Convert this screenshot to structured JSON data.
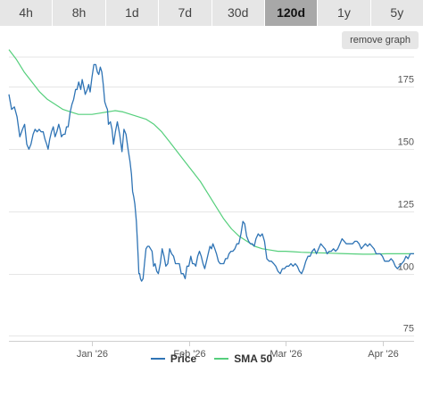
{
  "ranges": [
    "4h",
    "8h",
    "1d",
    "7d",
    "30d",
    "120d",
    "1y",
    "5y"
  ],
  "active_range": "120d",
  "remove_graph_label": "remove graph",
  "colors": {
    "price": "#2f74b5",
    "sma": "#55cf7c",
    "grid": "#e6e6e6",
    "tabs": "#e6e6e6",
    "active_tab": "#a8a8a8"
  },
  "chart_data": {
    "type": "line",
    "title": "",
    "xlabel": "",
    "ylabel": "",
    "x_ticks": [
      "Jan '26",
      "Feb '26",
      "Mar '26",
      "Apr '26"
    ],
    "x_tick_positions": [
      0,
      1,
      2,
      3
    ],
    "xlim": [
      -0.858,
      3.326
    ],
    "y_ticks": [
      75,
      100,
      125,
      150,
      175
    ],
    "ylim": [
      73,
      187
    ],
    "grid": true,
    "legend": "bottom-center",
    "series": [
      {
        "name": "Price",
        "color": "#2f74b5",
        "points": [
          [
            -0.858,
            172
          ],
          [
            -0.83,
            166
          ],
          [
            -0.802,
            167
          ],
          [
            -0.774,
            163
          ],
          [
            -0.746,
            155
          ],
          [
            -0.718,
            158
          ],
          [
            -0.696,
            160
          ],
          [
            -0.674,
            152
          ],
          [
            -0.652,
            150
          ],
          [
            -0.63,
            152
          ],
          [
            -0.608,
            156
          ],
          [
            -0.588,
            158
          ],
          [
            -0.567,
            157
          ],
          [
            -0.546,
            158
          ],
          [
            -0.525,
            157
          ],
          [
            -0.504,
            157
          ],
          [
            -0.486,
            154
          ],
          [
            -0.468,
            152
          ],
          [
            -0.453,
            150
          ],
          [
            -0.437,
            154
          ],
          [
            -0.418,
            157
          ],
          [
            -0.4,
            159
          ],
          [
            -0.382,
            155
          ],
          [
            -0.363,
            157
          ],
          [
            -0.344,
            160
          ],
          [
            -0.33,
            158
          ],
          [
            -0.316,
            155
          ],
          [
            -0.297,
            156
          ],
          [
            -0.278,
            156
          ],
          [
            -0.264,
            159
          ],
          [
            -0.246,
            159
          ],
          [
            -0.225,
            165
          ],
          [
            -0.207,
            168
          ],
          [
            -0.19,
            170
          ],
          [
            -0.17,
            174
          ],
          [
            -0.155,
            174
          ],
          [
            -0.137,
            177
          ],
          [
            -0.116,
            174
          ],
          [
            -0.101,
            178
          ],
          [
            -0.085,
            175
          ],
          [
            -0.07,
            172
          ],
          [
            -0.049,
            174
          ],
          [
            -0.034,
            176
          ],
          [
            -0.019,
            173
          ],
          [
            0.0,
            179
          ],
          [
            0.019,
            184
          ],
          [
            0.039,
            184
          ],
          [
            0.055,
            181
          ],
          [
            0.07,
            180
          ],
          [
            0.086,
            183
          ],
          [
            0.101,
            181
          ],
          [
            0.116,
            176
          ],
          [
            0.132,
            169
          ],
          [
            0.148,
            167
          ],
          [
            0.159,
            166
          ],
          [
            0.17,
            160
          ],
          [
            0.19,
            161
          ],
          [
            0.206,
            158
          ],
          [
            0.222,
            152
          ],
          [
            0.241,
            157
          ],
          [
            0.262,
            161
          ],
          [
            0.286,
            156
          ],
          [
            0.31,
            149
          ],
          [
            0.33,
            158
          ],
          [
            0.351,
            156
          ],
          [
            0.372,
            150
          ],
          [
            0.393,
            145
          ],
          [
            0.407,
            140
          ],
          [
            0.419,
            133
          ],
          [
            0.43,
            131
          ],
          [
            0.442,
            128
          ],
          [
            0.458,
            121
          ],
          [
            0.47,
            112
          ],
          [
            0.477,
            106
          ],
          [
            0.484,
            100
          ],
          [
            0.492,
            100
          ],
          [
            0.5,
            98
          ],
          [
            0.512,
            97
          ],
          [
            0.527,
            98
          ],
          [
            0.542,
            104
          ],
          [
            0.558,
            110
          ],
          [
            0.574,
            111
          ],
          [
            0.589,
            111
          ],
          [
            0.605,
            110
          ],
          [
            0.62,
            109
          ],
          [
            0.636,
            103
          ],
          [
            0.652,
            104
          ],
          [
            0.668,
            101
          ],
          [
            0.685,
            100
          ],
          [
            0.705,
            104
          ],
          [
            0.724,
            110
          ],
          [
            0.744,
            107
          ],
          [
            0.762,
            103
          ],
          [
            0.782,
            104
          ],
          [
            0.802,
            110
          ],
          [
            0.822,
            108
          ],
          [
            0.842,
            107
          ],
          [
            0.862,
            104
          ],
          [
            0.882,
            104
          ],
          [
            0.902,
            104
          ],
          [
            0.922,
            100
          ],
          [
            0.942,
            100
          ],
          [
            0.962,
            98
          ],
          [
            0.981,
            103
          ],
          [
            1.0,
            103
          ],
          [
            1.02,
            107
          ],
          [
            1.038,
            104
          ],
          [
            1.055,
            104
          ],
          [
            1.072,
            103
          ],
          [
            1.091,
            107
          ],
          [
            1.11,
            109
          ],
          [
            1.128,
            107
          ],
          [
            1.146,
            104
          ],
          [
            1.164,
            102
          ],
          [
            1.182,
            105
          ],
          [
            1.2,
            108
          ],
          [
            1.218,
            111
          ],
          [
            1.234,
            110
          ],
          [
            1.249,
            112
          ],
          [
            1.268,
            110
          ],
          [
            1.286,
            108
          ],
          [
            1.305,
            105
          ],
          [
            1.323,
            104
          ],
          [
            1.342,
            104
          ],
          [
            1.36,
            104
          ],
          [
            1.379,
            106
          ],
          [
            1.398,
            106
          ],
          [
            1.415,
            108
          ],
          [
            1.436,
            109
          ],
          [
            1.454,
            109
          ],
          [
            1.475,
            110
          ],
          [
            1.496,
            112
          ],
          [
            1.516,
            112
          ],
          [
            1.538,
            116
          ],
          [
            1.558,
            121
          ],
          [
            1.577,
            120
          ],
          [
            1.597,
            115
          ],
          [
            1.617,
            113
          ],
          [
            1.636,
            112
          ],
          [
            1.655,
            112
          ],
          [
            1.675,
            111
          ],
          [
            1.693,
            114
          ],
          [
            1.716,
            116
          ],
          [
            1.737,
            115
          ],
          [
            1.758,
            116
          ],
          [
            1.781,
            113
          ],
          [
            1.805,
            106
          ],
          [
            1.829,
            105
          ],
          [
            1.852,
            105
          ],
          [
            1.876,
            104
          ],
          [
            1.898,
            103
          ],
          [
            1.92,
            101
          ],
          [
            1.944,
            100
          ],
          [
            1.966,
            102
          ],
          [
            1.988,
            102
          ],
          [
            2.01,
            103
          ],
          [
            2.032,
            103
          ],
          [
            2.054,
            104
          ],
          [
            2.076,
            103
          ],
          [
            2.098,
            104
          ],
          [
            2.12,
            103
          ],
          [
            2.142,
            101
          ],
          [
            2.164,
            100
          ],
          [
            2.186,
            102
          ],
          [
            2.208,
            105
          ],
          [
            2.23,
            107
          ],
          [
            2.252,
            107
          ],
          [
            2.274,
            109
          ],
          [
            2.296,
            110
          ],
          [
            2.318,
            108
          ],
          [
            2.34,
            110
          ],
          [
            2.362,
            112
          ],
          [
            2.384,
            111
          ],
          [
            2.406,
            110
          ],
          [
            2.428,
            108
          ],
          [
            2.45,
            109
          ],
          [
            2.472,
            109
          ],
          [
            2.494,
            110
          ],
          [
            2.516,
            109
          ],
          [
            2.538,
            110
          ],
          [
            2.56,
            112
          ],
          [
            2.582,
            114
          ],
          [
            2.604,
            113
          ],
          [
            2.626,
            112
          ],
          [
            2.648,
            112
          ],
          [
            2.67,
            112
          ],
          [
            2.692,
            112
          ],
          [
            2.714,
            113
          ],
          [
            2.736,
            113
          ],
          [
            2.758,
            112
          ],
          [
            2.78,
            110
          ],
          [
            2.802,
            111
          ],
          [
            2.824,
            112
          ],
          [
            2.846,
            111
          ],
          [
            2.868,
            112
          ],
          [
            2.89,
            111
          ],
          [
            2.912,
            110
          ],
          [
            2.934,
            108
          ],
          [
            2.956,
            108
          ],
          [
            2.978,
            108
          ],
          [
            3.0,
            107
          ],
          [
            3.022,
            105
          ],
          [
            3.044,
            105
          ],
          [
            3.066,
            105
          ],
          [
            3.088,
            106
          ],
          [
            3.11,
            105
          ],
          [
            3.132,
            103
          ],
          [
            3.154,
            102
          ],
          [
            3.176,
            103
          ],
          [
            3.198,
            104
          ],
          [
            3.22,
            105
          ],
          [
            3.242,
            107
          ],
          [
            3.264,
            106
          ],
          [
            3.286,
            108
          ],
          [
            3.308,
            108
          ],
          [
            3.326,
            108
          ]
        ]
      },
      {
        "name": "SMA 50",
        "color": "#55cf7c",
        "points": [
          [
            -0.858,
            190
          ],
          [
            -0.78,
            186
          ],
          [
            -0.7,
            181
          ],
          [
            -0.62,
            177
          ],
          [
            -0.54,
            173
          ],
          [
            -0.46,
            170
          ],
          [
            -0.38,
            168
          ],
          [
            -0.3,
            166
          ],
          [
            -0.22,
            165
          ],
          [
            -0.14,
            164
          ],
          [
            -0.06,
            164
          ],
          [
            0.0,
            164
          ],
          [
            0.08,
            164.5
          ],
          [
            0.16,
            165
          ],
          [
            0.24,
            165.5
          ],
          [
            0.32,
            165
          ],
          [
            0.4,
            164
          ],
          [
            0.48,
            163
          ],
          [
            0.56,
            162
          ],
          [
            0.64,
            160
          ],
          [
            0.72,
            157
          ],
          [
            0.8,
            153
          ],
          [
            0.88,
            149
          ],
          [
            0.96,
            145
          ],
          [
            1.04,
            141
          ],
          [
            1.12,
            137
          ],
          [
            1.2,
            132
          ],
          [
            1.28,
            127
          ],
          [
            1.36,
            122
          ],
          [
            1.44,
            118
          ],
          [
            1.52,
            115
          ],
          [
            1.6,
            113
          ],
          [
            1.68,
            111
          ],
          [
            1.76,
            110
          ],
          [
            1.84,
            109.5
          ],
          [
            1.92,
            109
          ],
          [
            2.0,
            109
          ],
          [
            2.08,
            108.8
          ],
          [
            2.16,
            108.6
          ],
          [
            2.24,
            108.5
          ],
          [
            2.32,
            108.4
          ],
          [
            2.4,
            108.3
          ],
          [
            2.48,
            108.2
          ],
          [
            2.56,
            108.1
          ],
          [
            2.64,
            108
          ],
          [
            2.72,
            107.9
          ],
          [
            2.8,
            107.8
          ],
          [
            2.88,
            107.8
          ],
          [
            2.96,
            107.9
          ],
          [
            3.04,
            108
          ],
          [
            3.12,
            108
          ],
          [
            3.2,
            108
          ],
          [
            3.28,
            108
          ],
          [
            3.326,
            108
          ]
        ]
      }
    ]
  }
}
